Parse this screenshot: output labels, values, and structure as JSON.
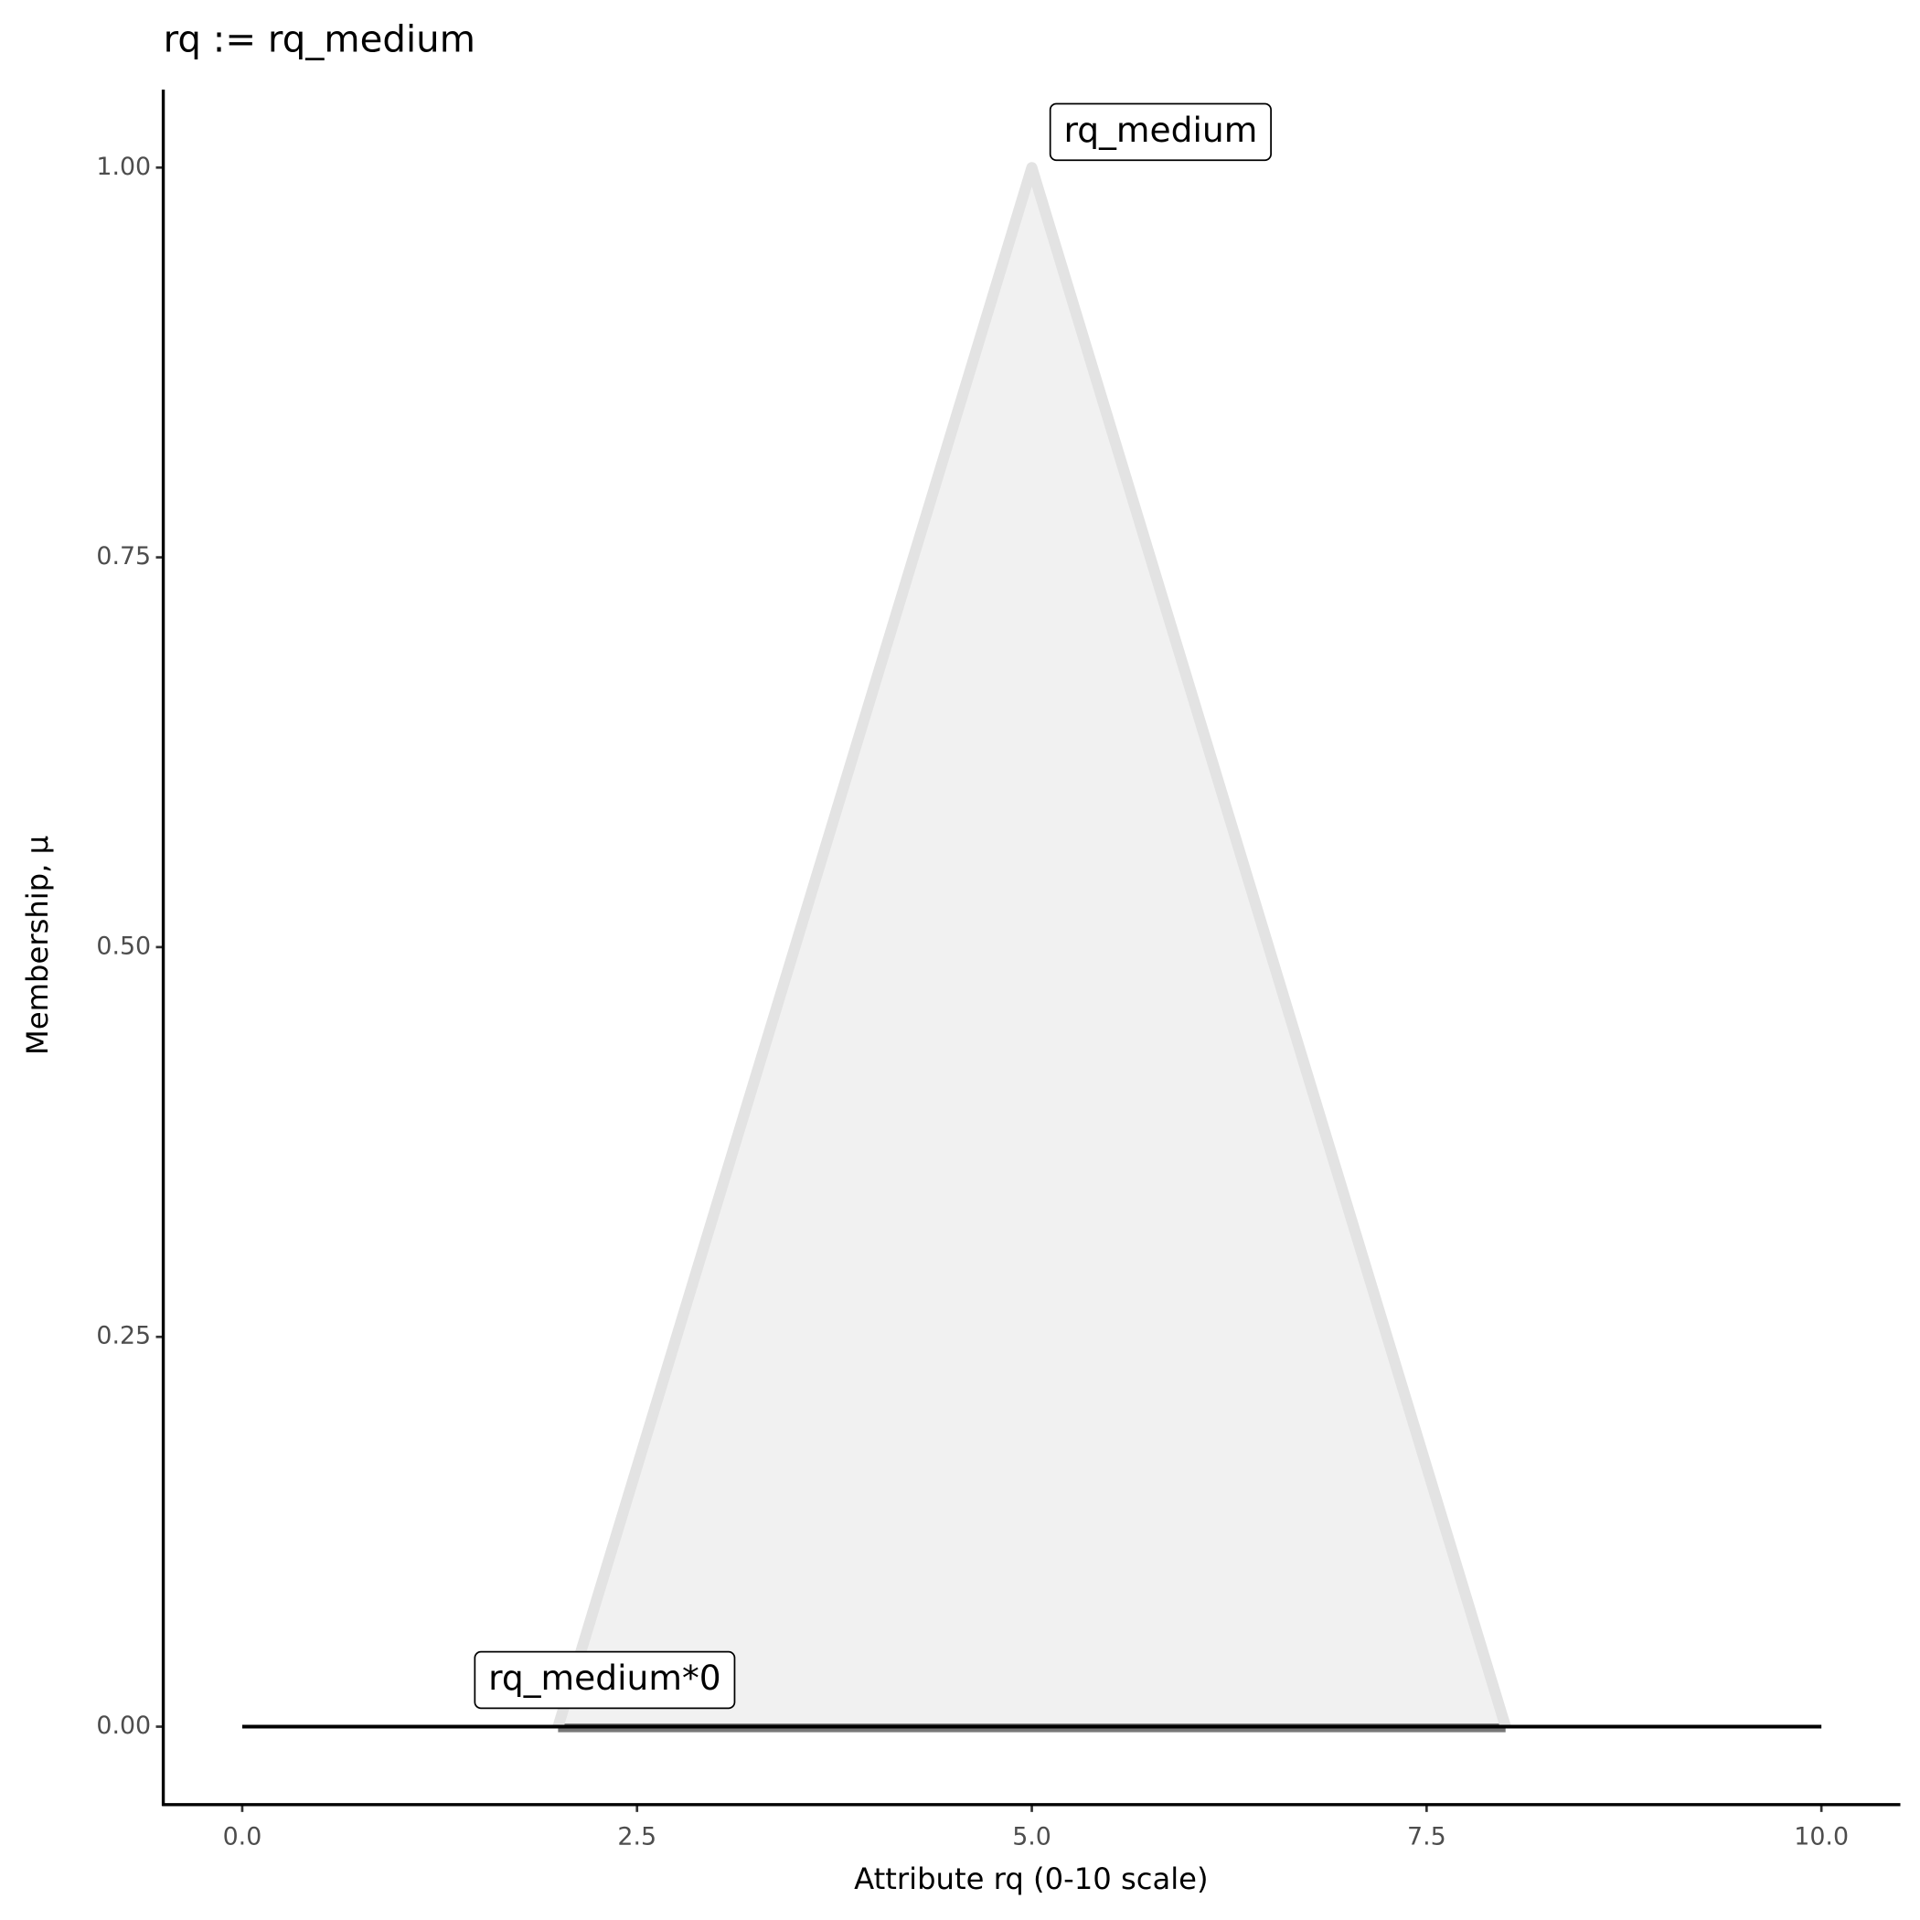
{
  "chart_data": {
    "type": "line",
    "title": "rq := rq_medium",
    "x_label": "Attribute rq (0-10 scale)",
    "y_label": "Membership, μ",
    "series": [
      {
        "name": "rq_medium",
        "color": "#e3e3e3",
        "fill": "#f1f1f1",
        "x": [
          2,
          5,
          8
        ],
        "values": [
          0,
          1,
          0
        ]
      },
      {
        "name": "rq_medium*0",
        "color": "#000000",
        "x": [
          0,
          10
        ],
        "values": [
          0,
          0
        ]
      }
    ],
    "xlim": [
      -0.5,
      10.5
    ],
    "ylim": [
      -0.05,
      1.05
    ],
    "xticks": [
      {
        "value": 0,
        "label": "0.0"
      },
      2.5,
      {
        "value": 5,
        "label": "5.0"
      },
      7.5,
      {
        "value": 10,
        "label": "10.0"
      }
    ],
    "yticks": [
      {
        "value": 0,
        "label": "0.00"
      },
      {
        "value": 0.25,
        "label": "0.25"
      },
      {
        "value": 0.5,
        "label": "0.50"
      },
      {
        "value": 0.75,
        "label": "0.75"
      },
      {
        "value": 1,
        "label": "1.00"
      }
    ],
    "grid": false
  }
}
